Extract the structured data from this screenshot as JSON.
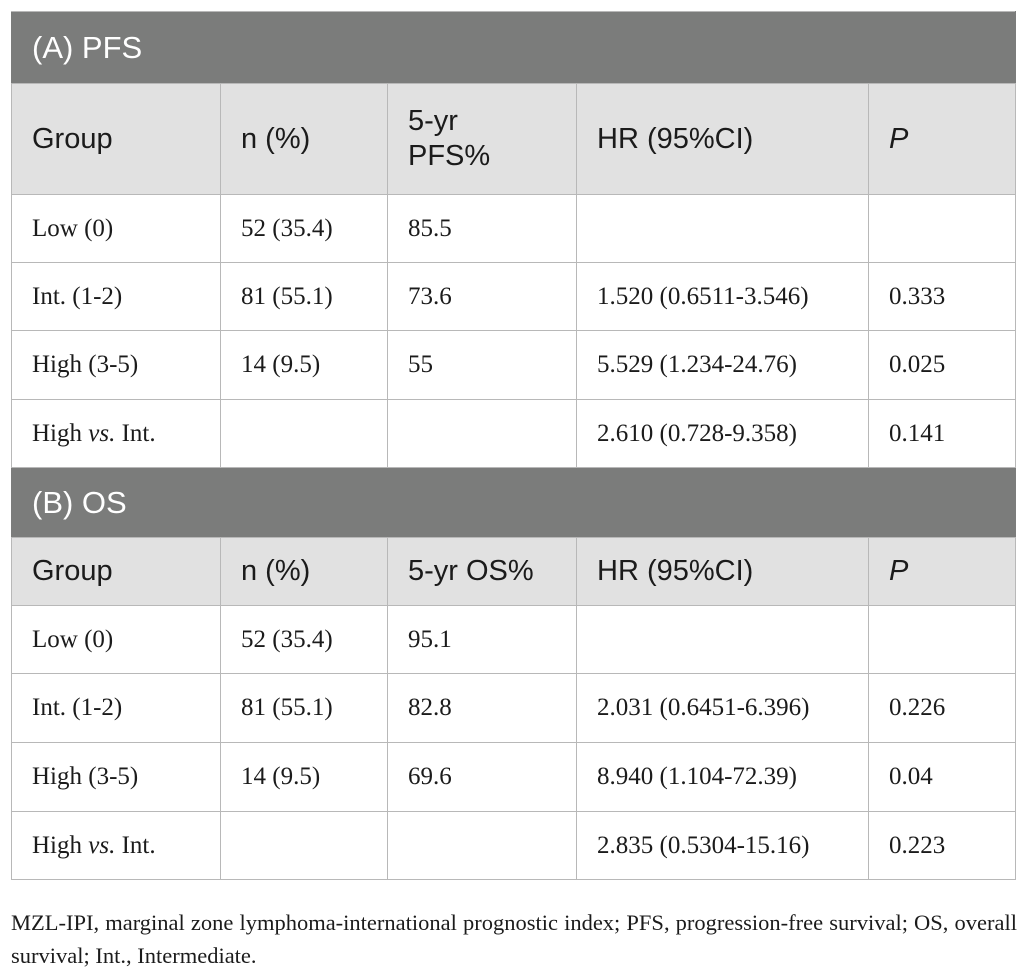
{
  "sections": [
    {
      "title": "(A) PFS",
      "headers": [
        "Group",
        "n (%)",
        "5-yr PFS%",
        "HR (95%CI)",
        "P"
      ],
      "rows": [
        {
          "group": "Low (0)",
          "n": "52 (35.4)",
          "rate": "85.5",
          "hr": "",
          "p": ""
        },
        {
          "group": "Int. (1-2)",
          "n": "81 (55.1)",
          "rate": "73.6",
          "hr": "1.520 (0.6511-3.546)",
          "p": "0.333"
        },
        {
          "group": "High (3-5)",
          "n": "14 (9.5)",
          "rate": "55",
          "hr": "5.529 (1.234-24.76)",
          "p": "0.025"
        },
        {
          "group_prefix": "High ",
          "group_vs": "vs.",
          "group_suffix": " Int.",
          "n": "",
          "rate": "",
          "hr": "2.610 (0.728-9.358)",
          "p": "0.141"
        }
      ]
    },
    {
      "title": "(B) OS",
      "headers": [
        "Group",
        "n (%)",
        "5-yr OS%",
        "HR (95%CI)",
        "P"
      ],
      "rows": [
        {
          "group": "Low (0)",
          "n": "52 (35.4)",
          "rate": "95.1",
          "hr": "",
          "p": ""
        },
        {
          "group": "Int. (1-2)",
          "n": "81 (55.1)",
          "rate": "82.8",
          "hr": "2.031 (0.6451-6.396)",
          "p": "0.226"
        },
        {
          "group": "High (3-5)",
          "n": "14 (9.5)",
          "rate": "69.6",
          "hr": "8.940 (1.104-72.39)",
          "p": "0.04"
        },
        {
          "group_prefix": "High ",
          "group_vs": "vs.",
          "group_suffix": " Int.",
          "n": "",
          "rate": "",
          "hr": "2.835 (0.5304-15.16)",
          "p": "0.223"
        }
      ]
    }
  ],
  "footnote": "MZL-IPI, marginal zone lymphoma-international prognostic index; PFS, progression-free survival; OS, overall survival; Int., Intermediate.",
  "colors": {
    "section_bg": "#7b7c7b",
    "header_bg": "#e1e1e1",
    "border": "#b8b8b8"
  }
}
